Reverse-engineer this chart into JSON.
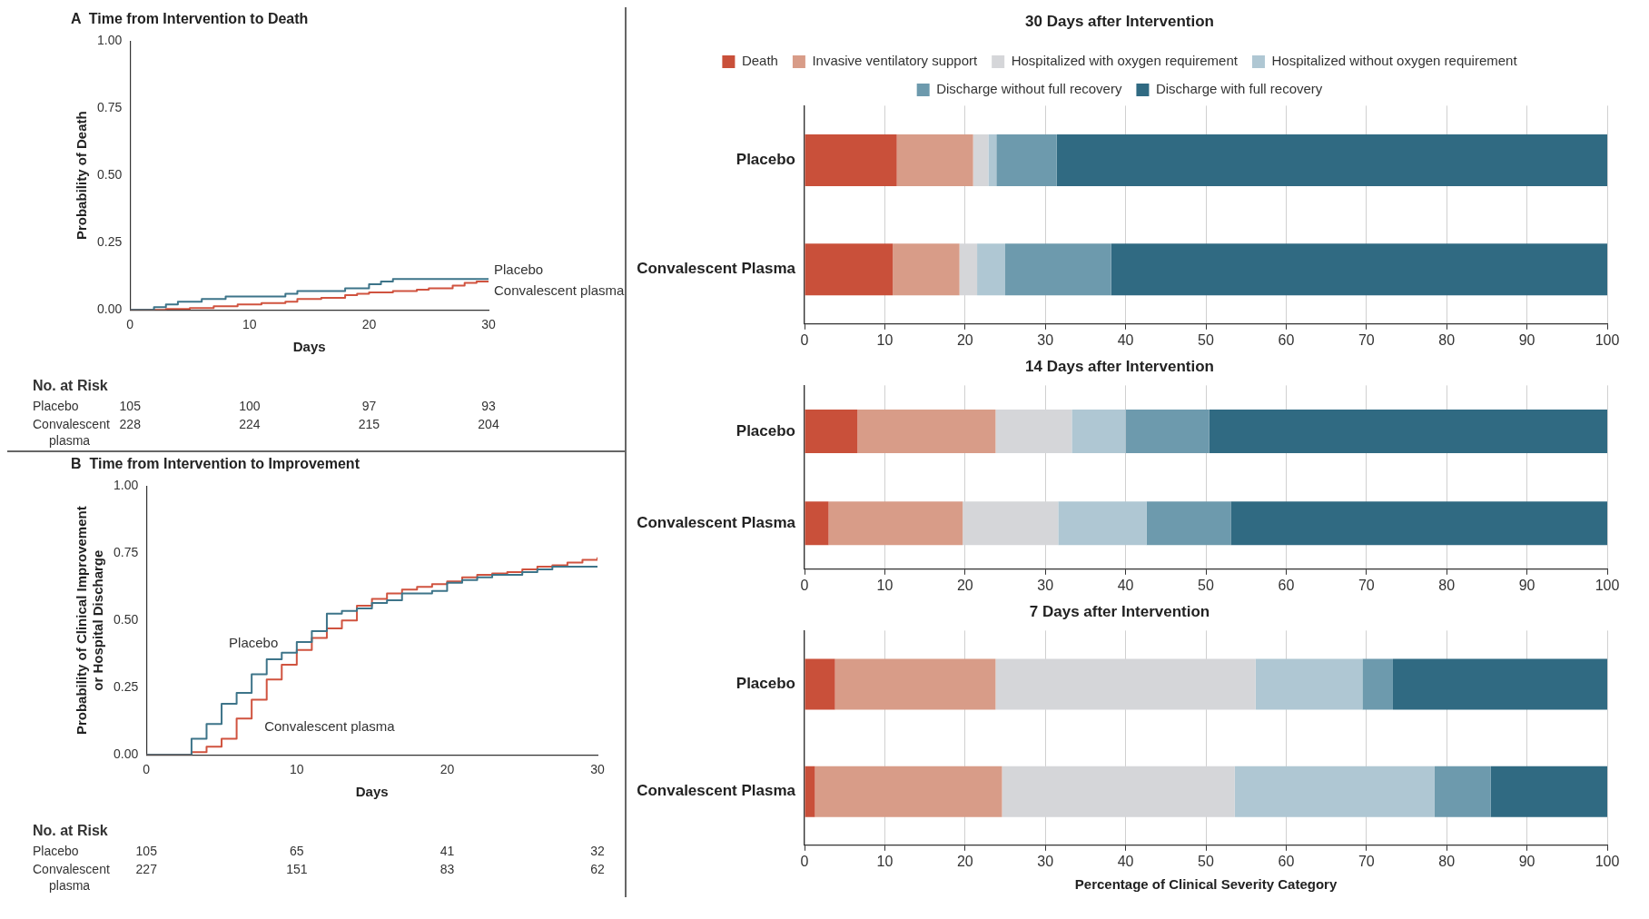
{
  "chart_data": [
    {
      "type": "step",
      "title": "A  Time from Intervention to Death",
      "xlabel": "Days",
      "ylabel": "Probability of Death",
      "xlim": [
        0,
        30
      ],
      "xticks": [
        0,
        10,
        20,
        30
      ],
      "ylim": [
        0,
        1
      ],
      "yticks": [
        {
          "value": 0,
          "label": "0.00"
        },
        {
          "value": 0.25,
          "label": "0.25"
        },
        {
          "value": 0.5,
          "label": "0.50"
        },
        {
          "value": 0.75,
          "label": "0.75"
        },
        {
          "value": 1,
          "label": "1.00"
        }
      ],
      "grid": false,
      "legend": false,
      "marker": "none",
      "line_style": "solid",
      "series": [
        {
          "name": "Placebo",
          "color": "#3d7489",
          "x": [
            0,
            2,
            3,
            4,
            6,
            8,
            13,
            14,
            18,
            20,
            21,
            22,
            30
          ],
          "values": [
            0,
            0.01,
            0.02,
            0.03,
            0.04,
            0.05,
            0.06,
            0.07,
            0.08,
            0.095,
            0.105,
            0.115,
            0.115
          ]
        },
        {
          "name": "Convalescent plasma",
          "color": "#d0533f",
          "x": [
            0,
            3,
            5,
            7,
            9,
            11,
            13,
            14,
            16,
            18,
            19,
            20,
            22,
            24,
            25,
            27,
            28,
            29,
            30
          ],
          "values": [
            0,
            0.003,
            0.007,
            0.013,
            0.02,
            0.025,
            0.03,
            0.04,
            0.045,
            0.055,
            0.06,
            0.065,
            0.07,
            0.075,
            0.08,
            0.09,
            0.1,
            0.105,
            0.105
          ]
        }
      ],
      "annotations": [
        "No. at Risk",
        "Placebo",
        "105",
        "100",
        "97",
        "93",
        "Convalescent plasma",
        "228",
        "224",
        "215",
        "204"
      ]
    },
    {
      "type": "step",
      "title": "B  Time from Intervention to Improvement",
      "xlabel": "Days",
      "ylabel": "Probability of Clinical Improvement\nor Hospital Discharge",
      "xlim": [
        0,
        30
      ],
      "xticks": [
        0,
        10,
        20,
        30
      ],
      "ylim": [
        0,
        1
      ],
      "yticks": [
        {
          "value": 0,
          "label": "0.00"
        },
        {
          "value": 0.25,
          "label": "0.25"
        },
        {
          "value": 0.5,
          "label": "0.50"
        },
        {
          "value": 0.75,
          "label": "0.75"
        },
        {
          "value": 1,
          "label": "1.00"
        }
      ],
      "grid": false,
      "legend": false,
      "marker": "none",
      "line_style": "solid",
      "series": [
        {
          "name": "Placebo",
          "color": "#3d7489",
          "x": [
            0,
            3,
            4,
            5,
            6,
            7,
            8,
            9,
            10,
            11,
            12,
            13,
            14,
            15,
            16,
            17,
            19,
            20,
            21,
            22,
            23,
            25,
            26,
            27,
            30
          ],
          "values": [
            0,
            0.06,
            0.115,
            0.19,
            0.23,
            0.3,
            0.355,
            0.38,
            0.42,
            0.46,
            0.525,
            0.535,
            0.545,
            0.565,
            0.575,
            0.6,
            0.61,
            0.64,
            0.65,
            0.66,
            0.67,
            0.68,
            0.69,
            0.7,
            0.7
          ]
        },
        {
          "name": "Convalescent plasma",
          "color": "#d0533f",
          "x": [
            0,
            3,
            4,
            5,
            6,
            7,
            8,
            9,
            10,
            11,
            12,
            13,
            14,
            15,
            16,
            17,
            18,
            19,
            20,
            21,
            22,
            23,
            24,
            25,
            26,
            27,
            28,
            29,
            30
          ],
          "values": [
            0,
            0.01,
            0.03,
            0.06,
            0.135,
            0.205,
            0.28,
            0.335,
            0.39,
            0.435,
            0.47,
            0.5,
            0.555,
            0.58,
            0.6,
            0.615,
            0.625,
            0.635,
            0.645,
            0.66,
            0.67,
            0.675,
            0.68,
            0.69,
            0.7,
            0.705,
            0.715,
            0.725,
            0.735
          ]
        }
      ],
      "annotations": [
        "No. at Risk",
        "Placebo",
        "105",
        "65",
        "41",
        "32",
        "Convalescent plasma",
        "227",
        "151",
        "83",
        "62"
      ]
    },
    {
      "type": "bar",
      "orientation": "horizontal",
      "stacked": true,
      "title": "30 Days after Intervention",
      "categories": [
        "Placebo",
        "Convalescent Plasma"
      ],
      "xlim": [
        0,
        100
      ],
      "xticks": [
        0,
        10,
        20,
        30,
        40,
        50,
        60,
        70,
        80,
        90,
        100
      ],
      "grid": "x",
      "legend": "top",
      "series": [
        {
          "name": "Death",
          "color": "#c9503a",
          "values": [
            11.5,
            11.0
          ]
        },
        {
          "name": "Invasive ventilatory support",
          "color": "#d89c88",
          "values": [
            9.5,
            8.3
          ]
        },
        {
          "name": "Hospitalized with oxygen requirement",
          "color": "#d5d6d9",
          "values": [
            1.9,
            2.2
          ]
        },
        {
          "name": "Hospitalized without oxygen requirement",
          "color": "#afc7d3",
          "values": [
            1.0,
            3.5
          ]
        },
        {
          "name": "Discharge without full recovery",
          "color": "#6d9aad",
          "values": [
            7.5,
            13.2
          ]
        },
        {
          "name": "Discharge with full recovery",
          "color": "#306a82",
          "values": [
            68.6,
            61.8
          ]
        }
      ]
    },
    {
      "type": "bar",
      "orientation": "horizontal",
      "stacked": true,
      "title": "14 Days after Intervention",
      "categories": [
        "Placebo",
        "Convalescent Plasma"
      ],
      "xlim": [
        0,
        100
      ],
      "xticks": [
        0,
        10,
        20,
        30,
        40,
        50,
        60,
        70,
        80,
        90,
        100
      ],
      "grid": "x",
      "legend": false,
      "series": [
        {
          "color": "#c9503a",
          "values": [
            6.6,
            3.0
          ]
        },
        {
          "color": "#d89c88",
          "values": [
            17.2,
            16.7
          ]
        },
        {
          "color": "#d5d6d9",
          "values": [
            9.5,
            11.9
          ]
        },
        {
          "color": "#afc7d3",
          "values": [
            6.7,
            11.0
          ]
        },
        {
          "color": "#6d9aad",
          "values": [
            10.4,
            10.5
          ]
        },
        {
          "color": "#306a82",
          "values": [
            49.6,
            46.9
          ]
        }
      ]
    },
    {
      "type": "bar",
      "orientation": "horizontal",
      "stacked": true,
      "title": "7 Days after Intervention",
      "xlabel": "Percentage of Clinical Severity Category",
      "categories": [
        "Placebo",
        "Convalescent Plasma"
      ],
      "xlim": [
        0,
        100
      ],
      "xticks": [
        0,
        10,
        20,
        30,
        40,
        50,
        60,
        70,
        80,
        90,
        100
      ],
      "grid": "x",
      "legend": false,
      "series": [
        {
          "color": "#c9503a",
          "values": [
            3.8,
            1.3
          ]
        },
        {
          "color": "#d89c88",
          "values": [
            20.0,
            23.3
          ]
        },
        {
          "color": "#d5d6d9",
          "values": [
            32.4,
            29.0
          ]
        },
        {
          "color": "#afc7d3",
          "values": [
            13.3,
            24.9
          ]
        },
        {
          "color": "#6d9aad",
          "values": [
            3.8,
            7.0
          ]
        },
        {
          "color": "#306a82",
          "values": [
            26.7,
            14.5
          ]
        }
      ]
    }
  ]
}
